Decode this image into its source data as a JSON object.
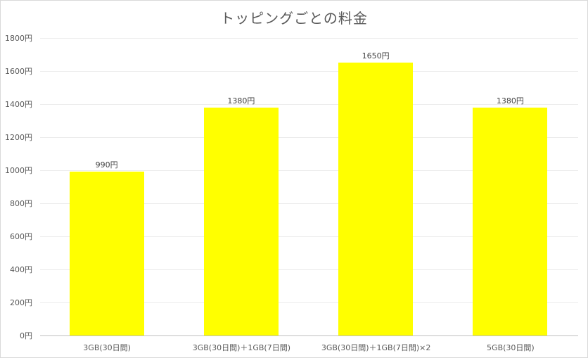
{
  "chart_data": {
    "type": "bar",
    "title": "トッピングごとの料金",
    "xlabel": "",
    "ylabel": "",
    "categories": [
      "3GB(30日間)",
      "3GB(30日間)＋1GB(7日間)",
      "3GB(30日間)＋1GB(7日間)×2",
      "5GB(30日間)"
    ],
    "values": [
      990,
      1380,
      1650,
      1380
    ],
    "data_labels": [
      "990円",
      "1380円",
      "1650円",
      "1380円"
    ],
    "ylim": [
      0,
      1800
    ],
    "yticks": [
      0,
      200,
      400,
      600,
      800,
      1000,
      1200,
      1400,
      1600,
      1800
    ],
    "ytick_labels": [
      "0円",
      "200円",
      "400円",
      "600円",
      "800円",
      "1000円",
      "1200円",
      "1400円",
      "1600円",
      "1800円"
    ],
    "grid": true,
    "legend": "none",
    "bar_color": "#ffff00"
  }
}
